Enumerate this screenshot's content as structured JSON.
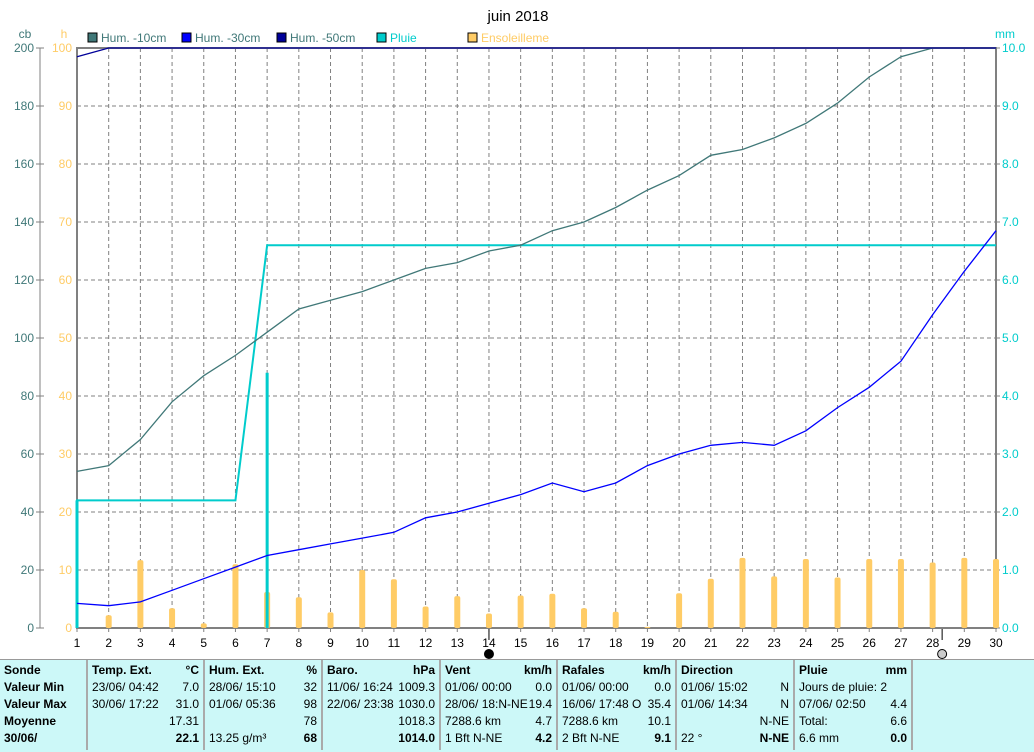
{
  "chart_data": {
    "type": "line",
    "title": "juin 2018",
    "x": [
      1,
      2,
      3,
      4,
      5,
      6,
      7,
      8,
      9,
      10,
      11,
      12,
      13,
      14,
      15,
      16,
      17,
      18,
      19,
      20,
      21,
      22,
      23,
      24,
      25,
      26,
      27,
      28,
      29,
      30
    ],
    "left_axis_1": {
      "unit": "cb",
      "range": [
        0,
        200
      ],
      "ticks": [
        0,
        20,
        40,
        60,
        80,
        100,
        120,
        140,
        160,
        180,
        200
      ],
      "color": "#407878"
    },
    "left_axis_2": {
      "unit": "h",
      "range": [
        0,
        100
      ],
      "ticks": [
        0,
        10,
        20,
        30,
        40,
        50,
        60,
        70,
        80,
        90,
        100
      ],
      "color": "#ffcc66"
    },
    "right_axis": {
      "unit": "mm",
      "range": [
        0,
        10
      ],
      "ticks": [
        "0.0",
        "1.0",
        "2.0",
        "3.0",
        "4.0",
        "5.0",
        "6.0",
        "7.0",
        "8.0",
        "9.0",
        "10.0"
      ],
      "color": "#00cccc"
    },
    "grid": true,
    "legend_placement": "top",
    "series": [
      {
        "name": "Hum. -10cm",
        "axis": "cb",
        "color": "#407878",
        "type": "line",
        "values": [
          54,
          56,
          65,
          78,
          87,
          94,
          102,
          110,
          113,
          116,
          120,
          124,
          126,
          130,
          132,
          137,
          140,
          145,
          151,
          156,
          163,
          165,
          169,
          174,
          181,
          190,
          197,
          200,
          200,
          200
        ]
      },
      {
        "name": "Hum. -30cm",
        "axis": "cb",
        "color": "#0000ff",
        "type": "line",
        "values": [
          8.5,
          7.7,
          9,
          13,
          17,
          21,
          25,
          27,
          29,
          31,
          33,
          38,
          40,
          43,
          46,
          50,
          47,
          50,
          56,
          60,
          63,
          64,
          63,
          68,
          76,
          83,
          92,
          108,
          123,
          137
        ]
      },
      {
        "name": "Hum. -50cm",
        "axis": "cb",
        "color": "#000099",
        "type": "line",
        "values": [
          197,
          200,
          200,
          200,
          200,
          200,
          200,
          200,
          200,
          200,
          200,
          200,
          200,
          200,
          200,
          200,
          200,
          200,
          200,
          200,
          200,
          200,
          200,
          200,
          200,
          200,
          200,
          200,
          200,
          200
        ]
      },
      {
        "name": "Pluie",
        "axis": "mm",
        "color": "#00cccc",
        "type": "cumulative-step",
        "daily": [
          2.2,
          0,
          0,
          0,
          0,
          0,
          4.4,
          0,
          0,
          0,
          0,
          0,
          0,
          0,
          0,
          0,
          0,
          0,
          0,
          0,
          0,
          0,
          0,
          0,
          0,
          0,
          0,
          0,
          0,
          0
        ],
        "cumulative": [
          2.2,
          2.2,
          2.2,
          2.2,
          2.2,
          2.2,
          6.6,
          6.6,
          6.6,
          6.6,
          6.6,
          6.6,
          6.6,
          6.6,
          6.6,
          6.6,
          6.6,
          6.6,
          6.6,
          6.6,
          6.6,
          6.6,
          6.6,
          6.6,
          6.6,
          6.6,
          6.6,
          6.6,
          6.6,
          6.6
        ]
      },
      {
        "name": "Ensoleilleme",
        "axis": "h",
        "color": "#ffcc66",
        "type": "bar",
        "values": [
          0,
          2.2,
          11.7,
          3.4,
          0.8,
          11,
          6.2,
          5.3,
          2.7,
          10,
          8.4,
          3.7,
          5.5,
          2.5,
          5.6,
          5.9,
          3.4,
          2.8,
          0.2,
          6,
          8.5,
          12.1,
          8.9,
          11.9,
          8.7,
          11.9,
          11.9,
          11.3,
          12.1,
          11.9
        ]
      }
    ],
    "moon_markers": [
      {
        "day": 14,
        "phase": "new-moon"
      },
      {
        "day": 28.3,
        "phase": "full-moon"
      }
    ]
  },
  "table": {
    "sonde": {
      "h": "Sonde",
      "r1": "Valeur Min",
      "r2": "Valeur Max",
      "r3": "Moyenne",
      "r4": "30/06/"
    },
    "temp": {
      "h": "Temp. Ext.",
      "u": "°C",
      "min_d": "23/06/  04:42",
      "min": "7.0",
      "max_d": "30/06/  17:22",
      "max": "31.0",
      "avg": "17.31",
      "cur": "22.1"
    },
    "hum": {
      "h": "Hum. Ext.",
      "u": "%",
      "min_d": "28/06/  15:10",
      "min": "32",
      "max_d": "01/06/  05:36",
      "max": "98",
      "avg": "78",
      "cur_l": "13.25 g/m³",
      "cur": "68"
    },
    "baro": {
      "h": "Baro.",
      "u": "hPa",
      "min_d": "11/06/  16:24",
      "min": "1009.3",
      "max_d": "22/06/  23:38",
      "max": "1030.0",
      "avg": "1018.3",
      "cur": "1014.0"
    },
    "vent": {
      "h": "Vent",
      "u": "km/h",
      "min_d": "01/06/  00:00",
      "min": "0.0",
      "max_d": "28/06/  18:N-NE",
      "max": "19.4",
      "avg_l": "7288.6 km",
      "avg": "4.7",
      "cur_l": "1 Bft N-NE",
      "cur": "4.2"
    },
    "rafales": {
      "h": "Rafales",
      "u": "km/h",
      "min_d": "01/06/  00:00",
      "min": "0.0",
      "max_d": "16/06/  17:48  O",
      "max": "35.4",
      "avg_l": "7288.6 km",
      "avg": "10.1",
      "cur_l": "2 Bft N-NE",
      "cur": "9.1"
    },
    "dir": {
      "h": "Direction",
      "min_d": "01/06/  15:02",
      "min": "N",
      "max_d": "01/06/  14:34",
      "max": "N",
      "avg": "N-NE",
      "cur_l": "22 °",
      "cur": "N-NE"
    },
    "pluie": {
      "h": "Pluie",
      "u": "mm",
      "r1": "Jours de pluie: 2",
      "max_d": "07/06/  02:50",
      "max": "4.4",
      "tot_l": "Total:",
      "tot": "6.6",
      "cur_l": "6.6 mm",
      "cur": "0.0"
    }
  }
}
